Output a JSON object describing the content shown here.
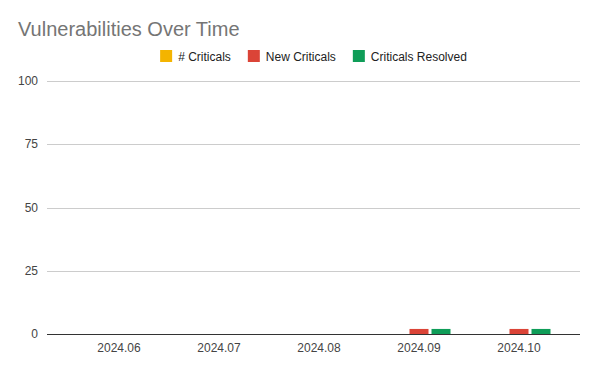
{
  "chart_data": {
    "type": "bar",
    "title": "Vulnerabilities Over Time",
    "categories": [
      "2024.06",
      "2024.07",
      "2024.08",
      "2024.09",
      "2024.10"
    ],
    "series": [
      {
        "name": "# Criticals",
        "color": "#f4b400",
        "values": [
          0,
          0,
          0,
          0,
          0
        ]
      },
      {
        "name": "New Criticals",
        "color": "#db4437",
        "values": [
          0,
          0,
          0,
          2,
          2
        ]
      },
      {
        "name": "Criticals Resolved",
        "color": "#0f9d58",
        "values": [
          0,
          0,
          0,
          2,
          2
        ]
      }
    ],
    "ylim": [
      0,
      100
    ],
    "yticks": [
      0,
      25,
      50,
      75,
      100
    ],
    "grid": true,
    "legend": "top"
  }
}
